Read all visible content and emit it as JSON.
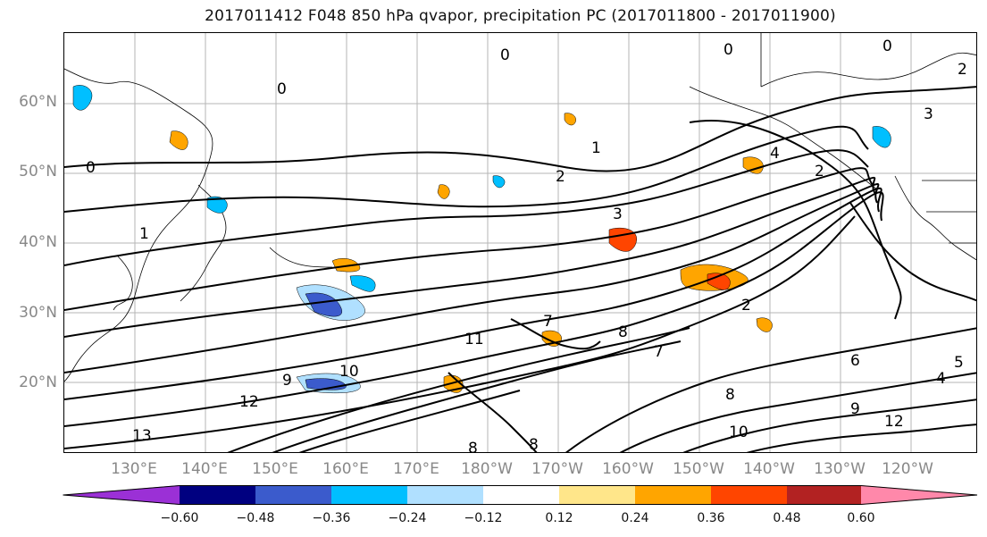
{
  "title": "2017011412 F048 850 hPa qvapor, precipitation PC (2017011800 - 2017011900)",
  "lat_labels": [
    "60°N",
    "50°N",
    "40°N",
    "30°N",
    "20°N"
  ],
  "lon_labels": [
    "130°E",
    "140°E",
    "150°E",
    "160°E",
    "170°E",
    "180°W",
    "170°W",
    "160°W",
    "150°W",
    "140°W",
    "130°W",
    "120°W"
  ],
  "contour_labels": [
    "0",
    "0",
    "0",
    "0",
    "0",
    "2",
    "1",
    "2",
    "3",
    "4",
    "2",
    "1",
    "3",
    "2",
    "6",
    "7",
    "11",
    "10",
    "9",
    "12",
    "13",
    "8",
    "7",
    "8",
    "9",
    "12",
    "10",
    "4",
    "5",
    "8",
    "8"
  ],
  "colorbar": {
    "ticks": [
      "−0.60",
      "−0.48",
      "−0.36",
      "−0.24",
      "−0.12",
      "0.12",
      "0.24",
      "0.36",
      "0.48",
      "0.60"
    ],
    "colors": [
      "#9b30d6",
      "#000080",
      "#3b5bcc",
      "#00bfff",
      "#b0e0ff",
      "#ffffff",
      "#ffe68a",
      "#ffa500",
      "#ff4500",
      "#b22222",
      "#ff88aa"
    ]
  }
}
